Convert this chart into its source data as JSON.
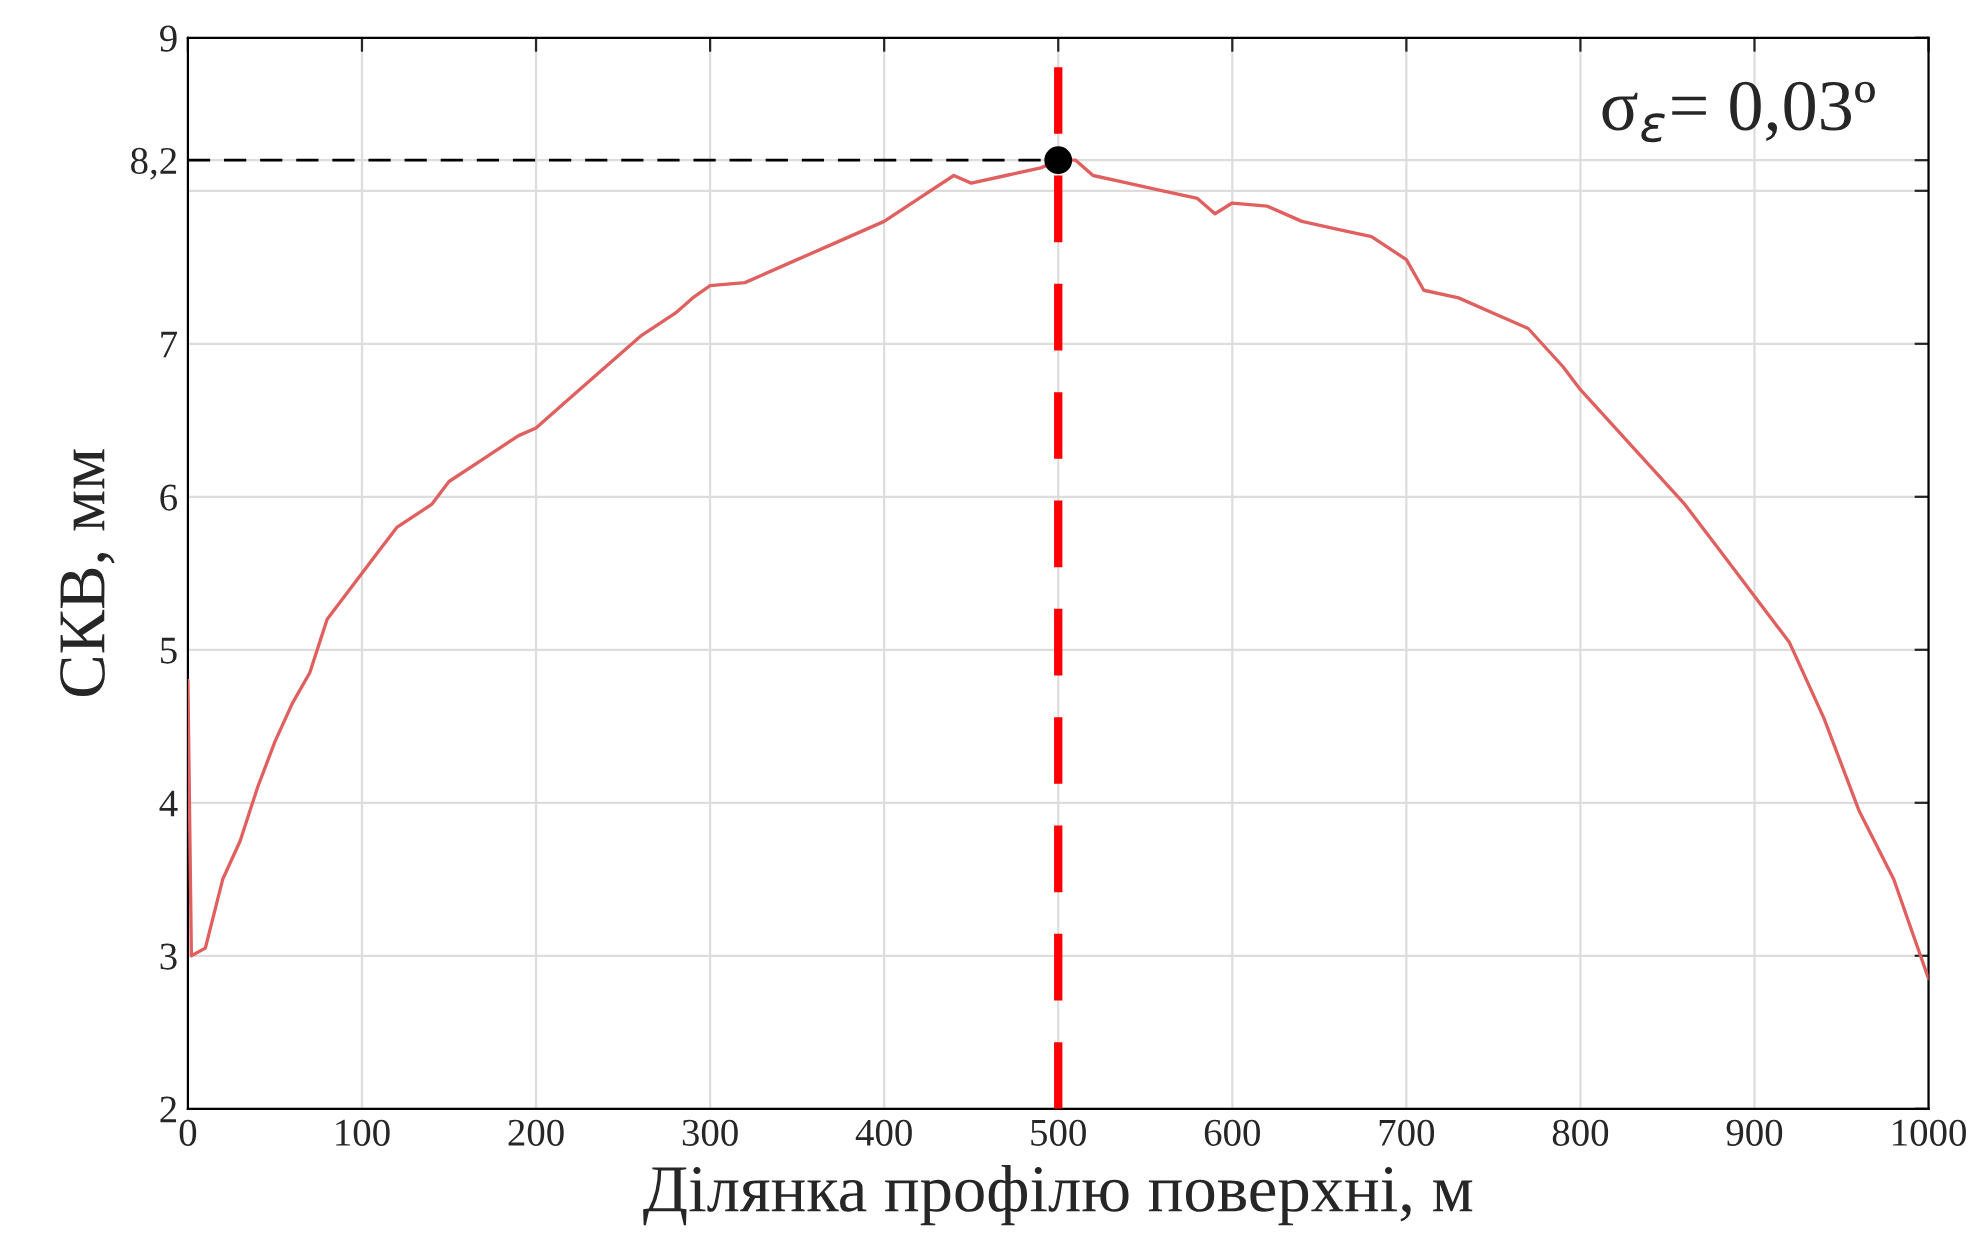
{
  "chart_data": {
    "type": "line",
    "xlabel": "Ділянка профілю поверхні, м",
    "ylabel": "СКВ, мм",
    "xlim": [
      0,
      1000
    ],
    "xticks": [
      0,
      100,
      200,
      300,
      400,
      500,
      600,
      700,
      800,
      900,
      1000
    ],
    "ylim": [
      2,
      9
    ],
    "yticks": [
      2,
      3,
      4,
      5,
      6,
      7,
      {
        "value": 8,
        "label": null
      },
      {
        "value": 8.2,
        "label": "8,2"
      },
      9
    ],
    "grid": true,
    "legend": false,
    "series": [
      {
        "color": "#e06060",
        "x": [
          0,
          2,
          10,
          20,
          30,
          40,
          50,
          60,
          70,
          80,
          90,
          100,
          110,
          120,
          140,
          150,
          170,
          190,
          200,
          220,
          240,
          260,
          280,
          290,
          300,
          320,
          330,
          350,
          370,
          400,
          420,
          440,
          450,
          470,
          490,
          500,
          510,
          520,
          540,
          560,
          580,
          590,
          600,
          620,
          640,
          660,
          680,
          700,
          710,
          730,
          750,
          770,
          790,
          800,
          820,
          840,
          860,
          880,
          900,
          920,
          940,
          960,
          980,
          1000
        ],
        "values": [
          4.8,
          3.0,
          3.05,
          3.5,
          3.75,
          4.1,
          4.4,
          4.65,
          4.85,
          5.2,
          5.35,
          5.5,
          5.65,
          5.8,
          5.95,
          6.1,
          6.25,
          6.4,
          6.45,
          6.65,
          6.85,
          7.05,
          7.2,
          7.3,
          7.38,
          7.4,
          7.45,
          7.55,
          7.65,
          7.8,
          7.95,
          8.1,
          8.05,
          8.1,
          8.15,
          8.2,
          8.2,
          8.1,
          8.05,
          8.0,
          7.95,
          7.85,
          7.92,
          7.9,
          7.8,
          7.75,
          7.7,
          7.55,
          7.35,
          7.3,
          7.2,
          7.1,
          6.85,
          6.7,
          6.45,
          6.2,
          5.95,
          5.65,
          5.35,
          5.05,
          4.55,
          3.95,
          3.5,
          2.85
        ]
      },
      {
        "type": "line",
        "line_style": "dashed",
        "color": "#000000",
        "x": [
          0,
          500
        ],
        "values": [
          8.2,
          8.2
        ]
      },
      {
        "type": "scatter",
        "marker": "circle",
        "color": "#000000",
        "x": [
          500
        ],
        "values": [
          8.2
        ]
      }
    ],
    "ref_lines": [
      {
        "axis": "x",
        "value": 500,
        "color": "#ff0000",
        "line_style": "dashed"
      }
    ],
    "annotations": [
      "σ$_{ε}$= 0,03º"
    ]
  }
}
